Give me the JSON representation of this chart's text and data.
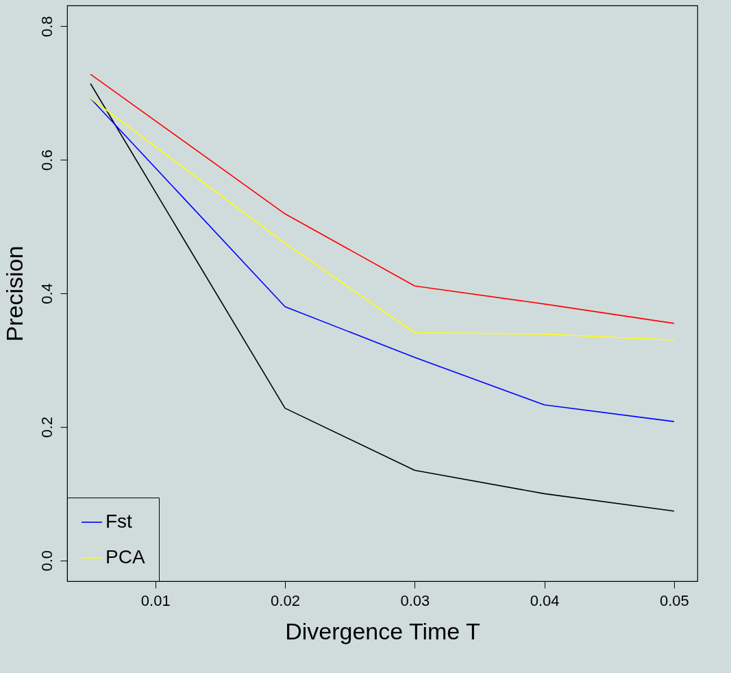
{
  "chart_data": {
    "type": "line",
    "xlabel": "Divergence Time T",
    "ylabel": "Precision",
    "x": [
      0.005,
      0.02,
      0.03,
      0.04,
      0.05
    ],
    "series": [
      {
        "color": "#000000",
        "values": [
          0.714,
          0.228,
          0.135,
          0.1,
          0.074
        ]
      },
      {
        "name": "Fst",
        "color": "#0000ff",
        "values": [
          0.692,
          0.38,
          0.304,
          0.233,
          0.208
        ]
      },
      {
        "color": "#ff0000",
        "values": [
          0.728,
          0.519,
          0.411,
          0.384,
          0.355
        ]
      },
      {
        "name": "PCA",
        "color": "#ffff00",
        "values": [
          0.692,
          0.475,
          0.341,
          0.339,
          0.33
        ]
      }
    ],
    "xlim": [
      0.0032,
      0.0518
    ],
    "ylim": [
      -0.031,
      0.831
    ],
    "xticks": [
      0.01,
      0.02,
      0.03,
      0.04,
      0.05
    ],
    "yticks": [
      {
        "value": 0,
        "label": "0.0"
      },
      0.2,
      0.4,
      0.6,
      0.8
    ],
    "grid": false,
    "legend": "bottom left",
    "marker": "none",
    "line_style": "solid"
  }
}
